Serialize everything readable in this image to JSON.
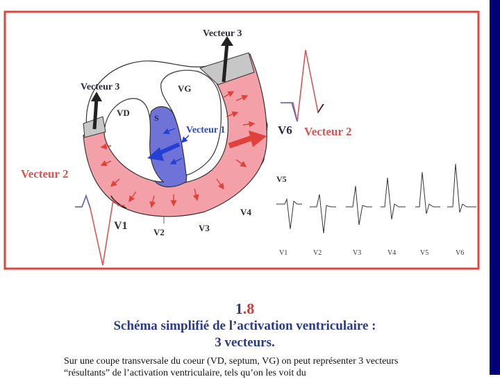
{
  "labels": {
    "vecteur3_top": "Vecteur 3",
    "vecteur3_left": "Vecteur 3",
    "vecteur1": "Vecteur 1",
    "vecteur2_right": "Vecteur 2",
    "vecteur2_left": "Vecteur 2",
    "vg": "VG",
    "vd": "VD",
    "septum": "S",
    "v1": "V1",
    "v2": "V2",
    "v3": "V3",
    "v4": "V4",
    "v5": "V5",
    "v6": "V6"
  },
  "ecg_strip": {
    "leads": [
      "V1",
      "V2",
      "V3",
      "V4",
      "V5",
      "V6"
    ]
  },
  "caption": {
    "number_main": "1",
    "number_dot": ".",
    "number_sub": "8",
    "title_line1": "Schéma simplifié de l’activation ventriculaire :",
    "title_line2": "3 vecteurs.",
    "body": "Sur une coupe transversale du coeur (VD, septum, VG) on peut représenter 3 vecteurs “résultants” de l’activation ventriculaire, tels qu’on les voit du"
  },
  "colors": {
    "frame": "#d9473f",
    "left_wall": "#f3a0a8",
    "septum": "#6f72d6",
    "base_cap": "#c7c7c7",
    "red_arrow": "#e0413a",
    "blue_arrow": "#2440d4",
    "label_dark": "#2a2a3a",
    "label_red": "#e05252",
    "label_blue": "#2b46c9",
    "caption": "#2a3a8c"
  }
}
